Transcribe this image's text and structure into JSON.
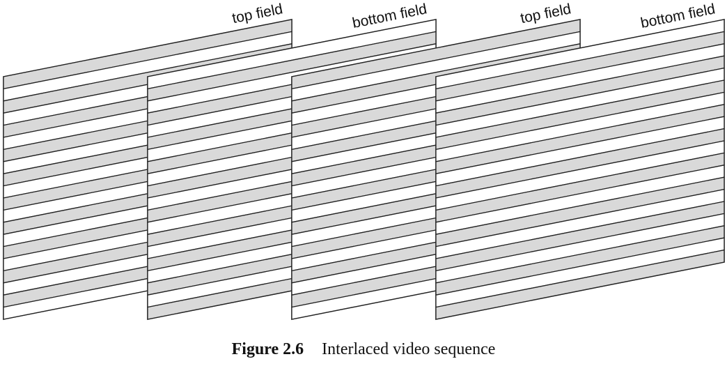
{
  "diagram": {
    "fields": [
      {
        "label": "top field",
        "first_line_shaded": true
      },
      {
        "label": "bottom field",
        "first_line_shaded": false
      },
      {
        "label": "top field",
        "first_line_shaded": true
      },
      {
        "label": "bottom field",
        "first_line_shaded": false
      }
    ],
    "lines_per_field": 20,
    "shade_color": "#d9d9d9",
    "stroke_color": "#222222"
  },
  "caption": {
    "number": "Figure 2.6",
    "text": "Interlaced video sequence"
  }
}
